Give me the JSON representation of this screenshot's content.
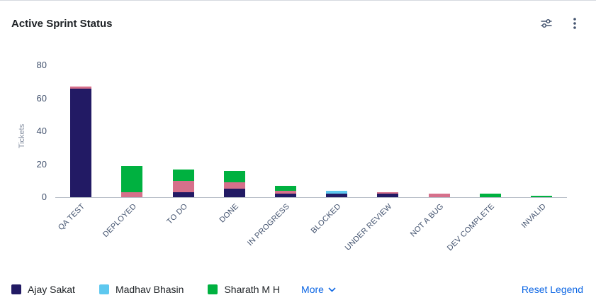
{
  "header": {
    "title": "Active Sprint Status",
    "icons": [
      "filter-settings-icon",
      "kebab-menu-icon"
    ]
  },
  "chart_data": {
    "type": "bar",
    "stacked": true,
    "title": "Active Sprint Status",
    "xlabel": "",
    "ylabel": "Tickets",
    "ylim": [
      0,
      80
    ],
    "yticks": [
      0,
      20,
      40,
      60,
      80
    ],
    "grid": false,
    "legend_position": "bottom",
    "categories": [
      "QA TEST",
      "DEPLOYED",
      "TO DO",
      "DONE",
      "IN PROGRESS",
      "BLOCKED",
      "UNDER REVIEW",
      "NOT A BUG",
      "DEV COMPLETE",
      "INVALID"
    ],
    "series": [
      {
        "name": "Ajay Sakat",
        "color": "#221a64",
        "in_legend": true,
        "values": [
          66,
          0,
          3,
          5,
          2,
          2,
          2,
          0,
          0,
          0
        ]
      },
      {
        "name": "Madhav Bhasin",
        "color": "#5ec8ef",
        "in_legend": true,
        "values": [
          0,
          0,
          0,
          0,
          0,
          2,
          0,
          0,
          0,
          0
        ]
      },
      {
        "name": "",
        "color": "#d6708b",
        "in_legend": false,
        "values": [
          1,
          3,
          7,
          4,
          2,
          0,
          1,
          2,
          0,
          0
        ]
      },
      {
        "name": "Sharath M H",
        "color": "#00b140",
        "in_legend": true,
        "values": [
          0,
          16,
          7,
          7,
          3,
          0,
          0,
          0,
          2,
          1
        ]
      }
    ]
  },
  "legend": {
    "more_label": "More",
    "reset_label": "Reset Legend"
  },
  "colors": {
    "link_accent": "#0c66e4",
    "axis_text": "#42526e",
    "title_text": "#1d2125"
  }
}
